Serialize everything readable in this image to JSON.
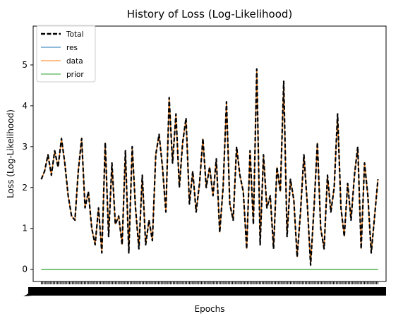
{
  "chart_data": {
    "type": "line",
    "title": "History of Loss (Log-Likelihood)",
    "xlabel": "Epochs",
    "ylabel": "Loss (Log-Likelihood)",
    "yticks": [
      0,
      1,
      2,
      3,
      4,
      5
    ],
    "ylim": [
      -0.3,
      5.95
    ],
    "xlim": [
      -12,
      512
    ],
    "grid": false,
    "legend_position": "upper left",
    "series": [
      {
        "name": "Total",
        "color": "#000000",
        "style": "dashed"
      },
      {
        "name": "res",
        "color": "#1f77b4",
        "style": "solid"
      },
      {
        "name": "data",
        "color": "#ff7f0e",
        "style": "solid"
      },
      {
        "name": "prior",
        "color": "#2ca02c",
        "style": "solid"
      }
    ],
    "x": [
      0,
      5,
      10,
      15,
      20,
      25,
      30,
      35,
      40,
      45,
      50,
      55,
      60,
      65,
      70,
      75,
      80,
      85,
      90,
      95,
      100,
      105,
      110,
      115,
      120,
      125,
      130,
      135,
      140,
      145,
      150,
      155,
      160,
      165,
      170,
      175,
      180,
      185,
      190,
      195,
      200,
      205,
      210,
      215,
      220,
      225,
      230,
      235,
      240,
      245,
      250,
      255,
      260,
      265,
      270,
      275,
      280,
      285,
      290,
      295,
      300,
      305,
      310,
      315,
      320,
      325,
      330,
      335,
      340,
      345,
      350,
      355,
      360,
      365,
      370,
      375,
      380,
      385,
      390,
      395,
      400,
      405,
      410,
      415,
      420,
      425,
      430,
      435,
      440,
      445,
      450,
      455,
      460,
      465,
      470,
      475,
      480,
      485,
      490,
      495,
      500
    ],
    "loss": [
      2.2,
      2.4,
      2.8,
      2.3,
      2.9,
      2.5,
      3.2,
      2.6,
      1.8,
      1.3,
      1.2,
      2.4,
      3.2,
      1.5,
      1.9,
      1.0,
      0.6,
      1.5,
      0.4,
      3.1,
      0.8,
      2.6,
      1.1,
      1.3,
      0.6,
      2.9,
      0.4,
      3.0,
      1.5,
      0.5,
      2.3,
      0.6,
      1.2,
      0.7,
      2.8,
      3.3,
      2.5,
      1.4,
      4.2,
      2.6,
      3.8,
      2.0,
      3.1,
      3.7,
      1.6,
      2.4,
      1.4,
      2.1,
      3.2,
      2.0,
      2.5,
      1.8,
      2.7,
      0.9,
      2.0,
      4.1,
      1.6,
      1.2,
      3.0,
      2.3,
      1.9,
      0.5,
      2.9,
      1.1,
      4.9,
      0.6,
      2.8,
      1.5,
      1.8,
      0.5,
      2.5,
      1.9,
      4.6,
      0.8,
      2.2,
      1.7,
      0.3,
      1.4,
      2.8,
      1.6,
      0.1,
      1.5,
      3.1,
      1.0,
      0.5,
      2.3,
      1.4,
      2.0,
      3.8,
      1.5,
      0.8,
      2.1,
      1.2,
      2.3,
      3.0,
      0.5,
      2.6,
      1.8,
      0.4,
      1.3,
      2.2
    ],
    "prior": 0.0
  }
}
